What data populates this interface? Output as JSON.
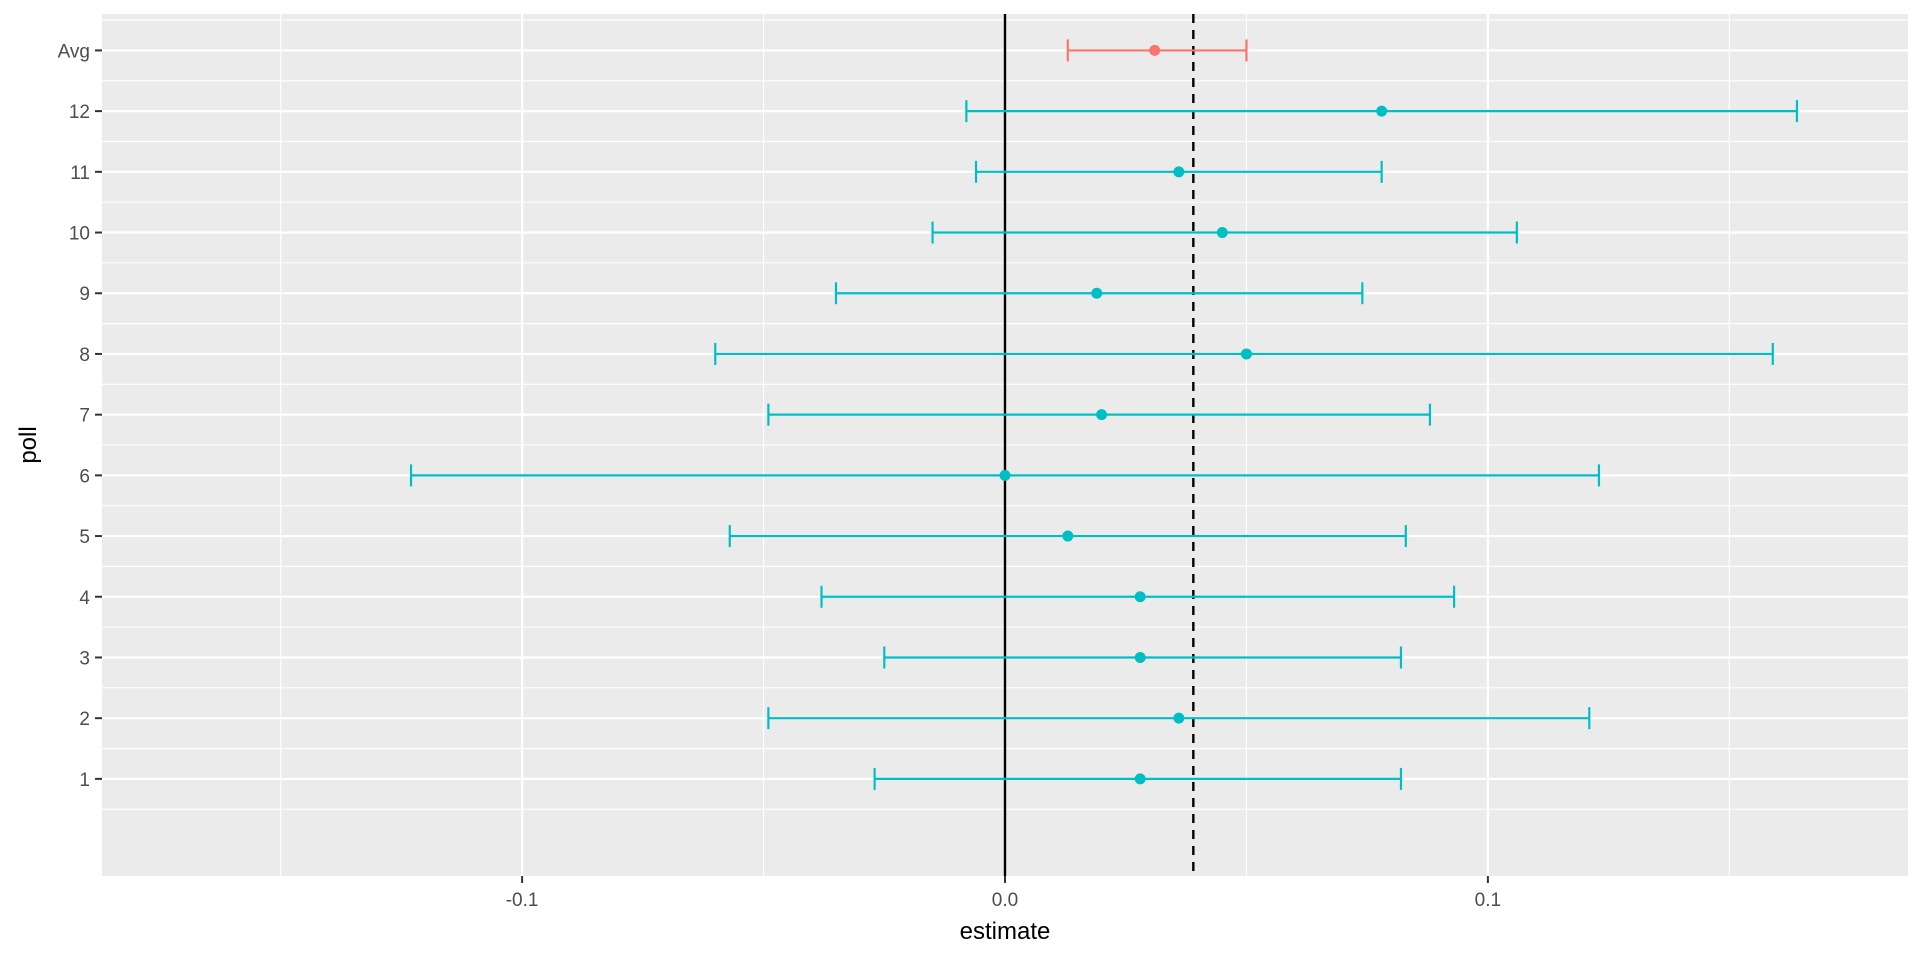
{
  "chart_data": {
    "type": "errorbar",
    "xlabel": "estimate",
    "ylabel": "poll",
    "xlim": [
      -0.187,
      0.187
    ],
    "x_ticks": [
      -0.1,
      0.0,
      0.1
    ],
    "x_tick_labels": [
      "-0.1",
      "0.0",
      "0.1"
    ],
    "categories": [
      "1",
      "2",
      "3",
      "4",
      "5",
      "6",
      "7",
      "8",
      "9",
      "10",
      "11",
      "12",
      "Avg"
    ],
    "grid": true,
    "legend": "none",
    "reference_lines": [
      {
        "x": 0.0,
        "style": "solid",
        "color": "#000000"
      },
      {
        "x": 0.039,
        "style": "dashed",
        "color": "#000000"
      }
    ],
    "series": [
      {
        "color": "#00BFC4",
        "points": [
          {
            "category": "1",
            "estimate": 0.028,
            "lower": -0.027,
            "upper": 0.082
          },
          {
            "category": "2",
            "estimate": 0.036,
            "lower": -0.049,
            "upper": 0.121
          },
          {
            "category": "3",
            "estimate": 0.028,
            "lower": -0.025,
            "upper": 0.082
          },
          {
            "category": "4",
            "estimate": 0.028,
            "lower": -0.038,
            "upper": 0.093
          },
          {
            "category": "5",
            "estimate": 0.013,
            "lower": -0.057,
            "upper": 0.083
          },
          {
            "category": "6",
            "estimate": 0.0,
            "lower": -0.123,
            "upper": 0.123
          },
          {
            "category": "7",
            "estimate": 0.02,
            "lower": -0.049,
            "upper": 0.088
          },
          {
            "category": "8",
            "estimate": 0.05,
            "lower": -0.06,
            "upper": 0.159
          },
          {
            "category": "9",
            "estimate": 0.019,
            "lower": -0.035,
            "upper": 0.074
          },
          {
            "category": "10",
            "estimate": 0.045,
            "lower": -0.015,
            "upper": 0.106
          },
          {
            "category": "11",
            "estimate": 0.036,
            "lower": -0.006,
            "upper": 0.078
          },
          {
            "category": "12",
            "estimate": 0.078,
            "lower": -0.008,
            "upper": 0.164
          }
        ]
      },
      {
        "color": "#F8766D",
        "points": [
          {
            "category": "Avg",
            "estimate": 0.031,
            "lower": 0.013,
            "upper": 0.05
          }
        ]
      }
    ]
  }
}
